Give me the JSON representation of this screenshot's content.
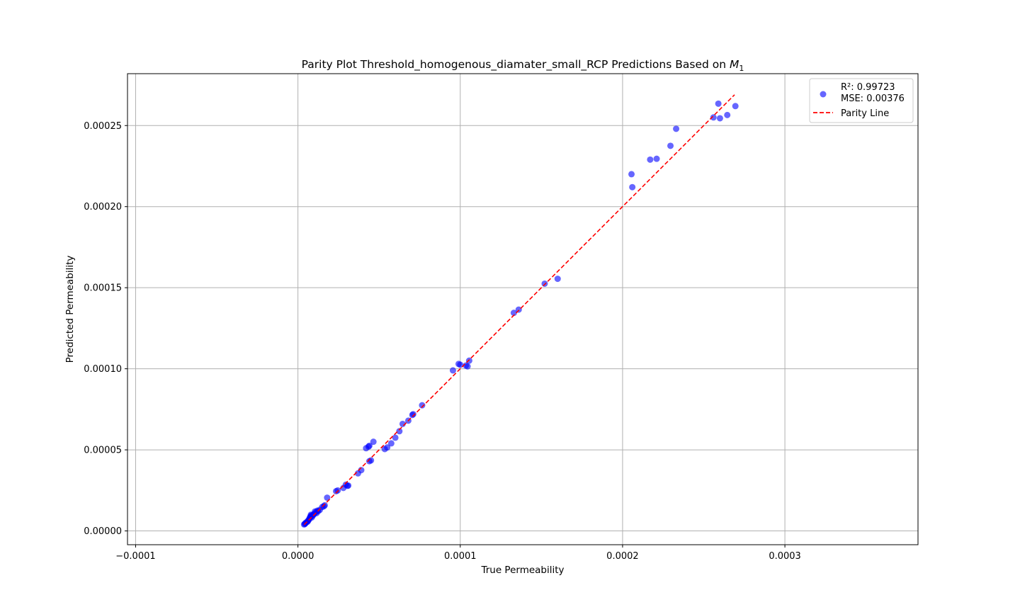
{
  "chart_data": {
    "type": "scatter",
    "title": "Parity Plot Threshold_homogenous_diamater_small_RCP Predictions Based on ",
    "title_math": "M",
    "title_math_sub": "1",
    "xlabel": "True Permeability",
    "ylabel": "Predicted Permeability",
    "xlim": [
      -0.000105,
      0.000382
    ],
    "ylim": [
      -8.5e-06,
      0.000282
    ],
    "xticks": [
      -0.0001,
      0.0,
      0.0001,
      0.0002,
      0.0003
    ],
    "xtick_labels": [
      "−0.0001",
      "0.0000",
      "0.0001",
      "0.0002",
      "0.0003"
    ],
    "yticks": [
      0.0,
      5e-05,
      0.0001,
      0.00015,
      0.0002,
      0.00025
    ],
    "ytick_labels": [
      "0.00000",
      "0.00005",
      "0.00010",
      "0.00015",
      "0.00020",
      "0.00025"
    ],
    "grid": true,
    "legend_position": "top-right",
    "series": [
      {
        "name": "R²: 0.99723\nMSE: 0.00376",
        "legend_line1": "R²: 0.99723",
        "legend_line2": "MSE: 0.00376",
        "kind": "scatter",
        "color": "#0000ff",
        "alpha": 0.6,
        "points": [
          [
            3.8e-06,
            4e-06
          ],
          [
            4.2e-06,
            4.3e-06
          ],
          [
            4.5e-06,
            4.6e-06
          ],
          [
            4.8e-06,
            5e-06
          ],
          [
            5.5e-06,
            5.5e-06
          ],
          [
            6e-06,
            5.8e-06
          ],
          [
            6.3e-06,
            6.4e-06
          ],
          [
            6.8e-06,
            7e-06
          ],
          [
            7.2e-06,
            7.8e-06
          ],
          [
            7.5e-06,
            8.5e-06
          ],
          [
            7.8e-06,
            9e-06
          ],
          [
            8e-06,
            1e-05
          ],
          [
            8.3e-06,
            9.5e-06
          ],
          [
            8.5e-06,
            8.3e-06
          ],
          [
            9e-06,
            9.2e-06
          ],
          [
            9.5e-06,
            1e-05
          ],
          [
            1e-05,
            1.05e-05
          ],
          [
            1.05e-05,
            1.2e-05
          ],
          [
            1.1e-05,
            1.15e-05
          ],
          [
            1.15e-05,
            1.1e-05
          ],
          [
            1.2e-05,
            1.25e-05
          ],
          [
            1.25e-05,
            1.22e-05
          ],
          [
            1.35e-05,
            1.3e-05
          ],
          [
            1.5e-05,
            1.48e-05
          ],
          [
            1.6e-05,
            1.52e-05
          ],
          [
            1.65e-05,
            1.58e-05
          ],
          [
            1.8e-05,
            2.05e-05
          ],
          [
            2.35e-05,
            2.45e-05
          ],
          [
            2.45e-05,
            2.5e-05
          ],
          [
            2.8e-05,
            2.65e-05
          ],
          [
            2.95e-05,
            2.85e-05
          ],
          [
            3.05e-05,
            2.78e-05
          ],
          [
            3.1e-05,
            2.8e-05
          ],
          [
            3.7e-05,
            3.55e-05
          ],
          [
            3.9e-05,
            3.75e-05
          ],
          [
            4.2e-05,
            5.1e-05
          ],
          [
            4.35e-05,
            5.2e-05
          ],
          [
            4.4e-05,
            5.25e-05
          ],
          [
            4.4e-05,
            4.3e-05
          ],
          [
            4.5e-05,
            4.35e-05
          ],
          [
            4.65e-05,
            5.5e-05
          ],
          [
            5.35e-05,
            5.05e-05
          ],
          [
            5.5e-05,
            5.15e-05
          ],
          [
            5.75e-05,
            5.4e-05
          ],
          [
            6e-05,
            5.75e-05
          ],
          [
            6.25e-05,
            6.15e-05
          ],
          [
            6.45e-05,
            6.6e-05
          ],
          [
            6.8e-05,
            6.8e-05
          ],
          [
            7.05e-05,
            7.15e-05
          ],
          [
            7.1e-05,
            7.2e-05
          ],
          [
            7.65e-05,
            7.75e-05
          ],
          [
            9.55e-05,
            9.9e-05
          ],
          [
            9.9e-05,
            0.000103
          ],
          [
            0.0001,
            0.0001025
          ],
          [
            0.0001035,
            0.000102
          ],
          [
            0.0001045,
            0.0001015
          ],
          [
            0.0001055,
            0.000105
          ],
          [
            0.000133,
            0.0001345
          ],
          [
            0.000136,
            0.0001365
          ],
          [
            0.000152,
            0.0001525
          ],
          [
            0.00016,
            0.0001555
          ],
          [
            0.0002055,
            0.00022
          ],
          [
            0.000206,
            0.000212
          ],
          [
            0.000217,
            0.000229
          ],
          [
            0.000221,
            0.0002295
          ],
          [
            0.0002295,
            0.0002375
          ],
          [
            0.000233,
            0.000248
          ],
          [
            0.000256,
            0.000255
          ],
          [
            0.000259,
            0.0002635
          ],
          [
            0.00026,
            0.0002545
          ],
          [
            0.0002645,
            0.0002565
          ],
          [
            0.0002695,
            0.000262
          ]
        ]
      },
      {
        "name": "Parity Line",
        "kind": "line",
        "color": "#ff0000",
        "dash": "dashed",
        "x": [
          3.8e-06,
          0.000269
        ],
        "y": [
          3.8e-06,
          0.000269
        ]
      }
    ]
  }
}
